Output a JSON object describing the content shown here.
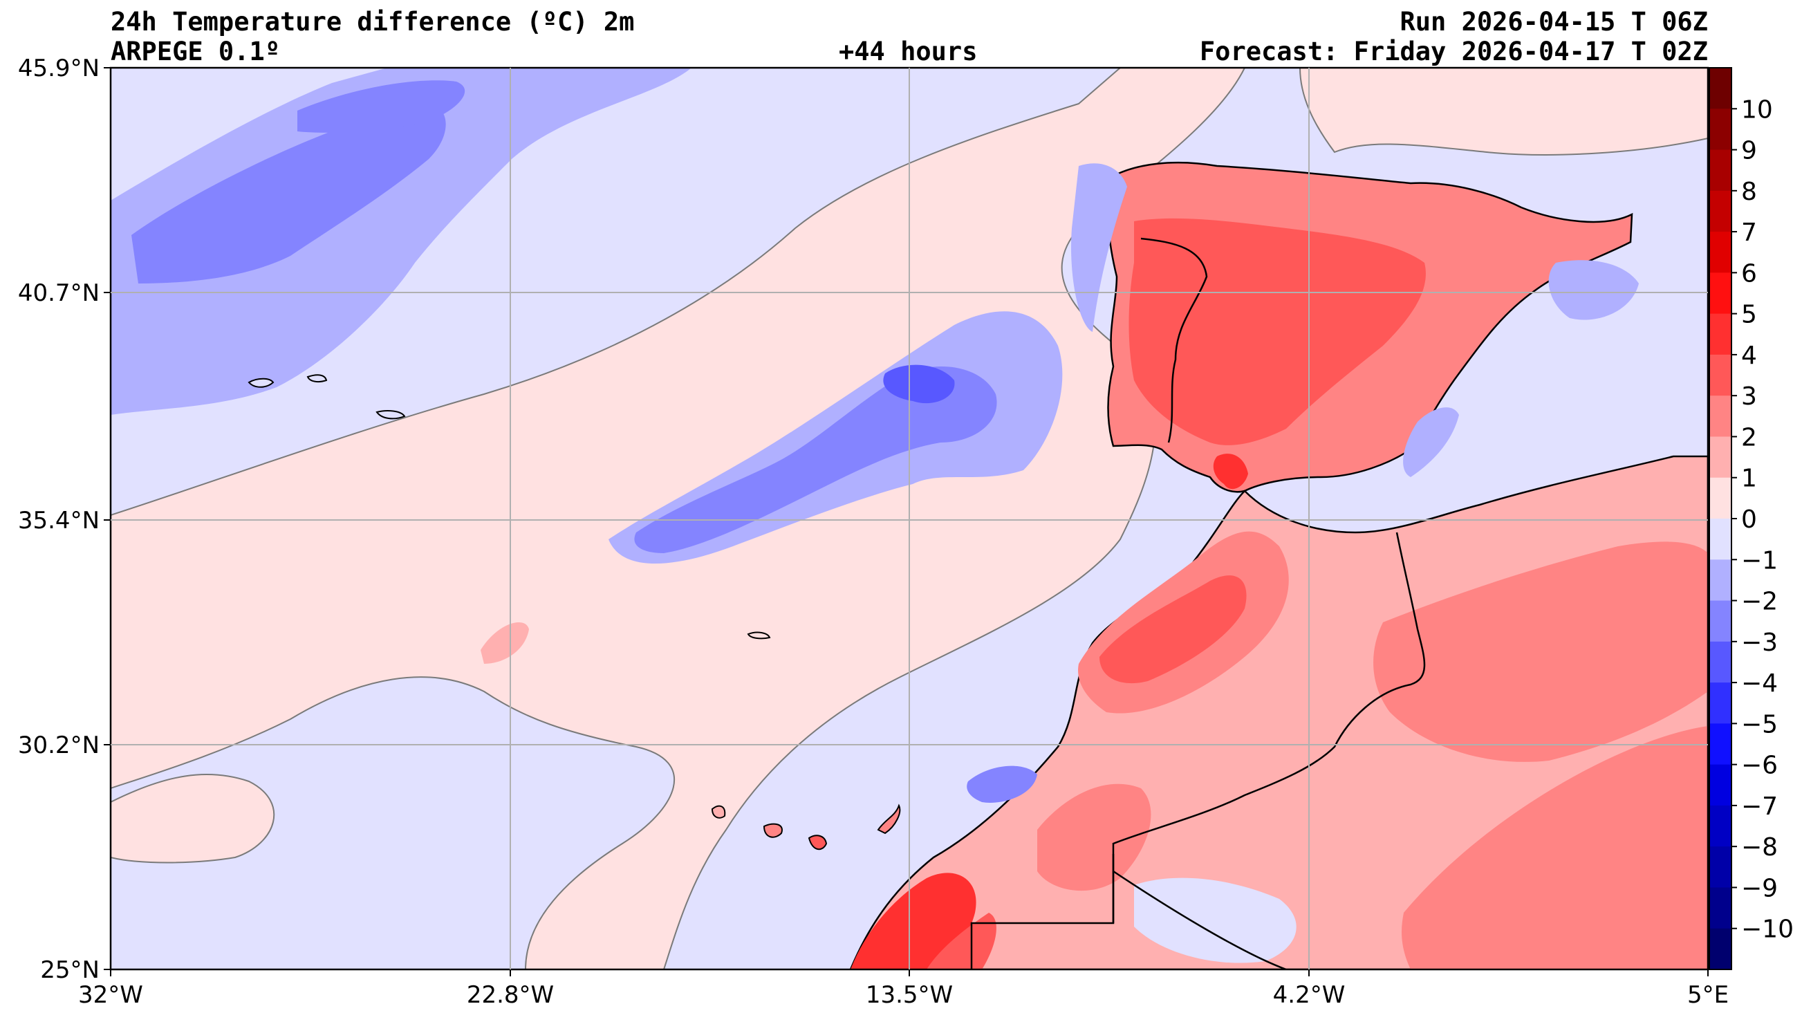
{
  "header": {
    "title": "24h Temperature difference (ºC) 2m",
    "model": "ARPEGE 0.1º",
    "lead": "+44 hours",
    "run": "Run 2026-04-15 T 06Z",
    "forecast": "Forecast: Friday 2026-04-17 T 02Z"
  },
  "axes": {
    "lat_ticks": [
      "45.9°N",
      "40.7°N",
      "35.4°N",
      "30.2°N",
      "25°N"
    ],
    "lon_ticks": [
      "32°W",
      "22.8°W",
      "13.5°W",
      "4.2°W",
      "5°E"
    ]
  },
  "colorbar": {
    "levels": [
      10,
      9,
      8,
      7,
      6,
      5,
      4,
      3,
      2,
      1,
      0,
      -1,
      -2,
      -3,
      -4,
      -5,
      -6,
      -7,
      -8,
      -9,
      -10
    ],
    "labels": [
      "10",
      "9",
      "8",
      "7",
      "6",
      "5",
      "4",
      "3",
      "2",
      "1",
      "0",
      "−1",
      "−2",
      "−3",
      "−4",
      "−5",
      "−6",
      "−7",
      "−8",
      "−9",
      "−10"
    ],
    "colors_top_to_bottom": [
      "#6e0000",
      "#8c0000",
      "#a80000",
      "#c40000",
      "#e00000",
      "#ff1010",
      "#ff3030",
      "#ff5858",
      "#ff8484",
      "#ffb0b0",
      "#ffe1e1",
      "#e1e1ff",
      "#b0b0ff",
      "#8484ff",
      "#5858ff",
      "#3030ff",
      "#1010ff",
      "#0000e0",
      "#0000c4",
      "#0000a8",
      "#00008c",
      "#00006e"
    ]
  },
  "palette": {
    "pos1": "#ffe1e1",
    "pos2": "#ffb0b0",
    "pos3": "#ff8484",
    "pos4": "#ff5858",
    "pos5": "#ff3030",
    "neg1": "#e1e1ff",
    "neg2": "#b0b0ff",
    "neg3": "#8484ff",
    "neg4": "#5858ff"
  }
}
